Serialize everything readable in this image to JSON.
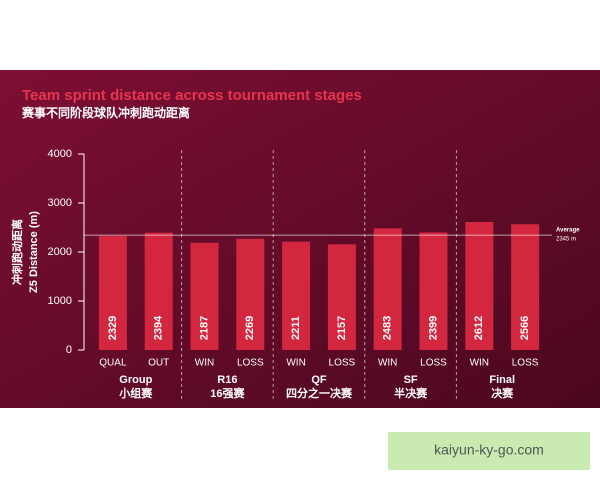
{
  "chart_data": {
    "type": "bar",
    "title": "Team sprint distance across tournament stages",
    "subtitle": "赛事不同阶段球队冲刺跑动距离",
    "y_label_zh": "冲刺跑动距离",
    "y_label": "Z5 Distance (m)",
    "categories": [
      "QUAL",
      "OUT",
      "WIN",
      "LOSS",
      "WIN",
      "LOSS",
      "WIN",
      "LOSS",
      "WIN",
      "LOSS"
    ],
    "values": [
      2329,
      2394,
      2187,
      2269,
      2211,
      2157,
      2483,
      2399,
      2612,
      2566
    ],
    "color": "#d3263f",
    "groups": [
      {
        "label": "Group",
        "label_zh": "小组赛"
      },
      {
        "label": "R16",
        "label_zh": "16强赛"
      },
      {
        "label": "QF",
        "label_zh": "四分之一决赛"
      },
      {
        "label": "SF",
        "label_zh": "半决赛"
      },
      {
        "label": "Final",
        "label_zh": "决赛"
      }
    ],
    "average": {
      "label": "Average",
      "value": 2345,
      "value_label": "2345 m"
    },
    "ylim": [
      0,
      4000
    ],
    "yticks": [
      0,
      1000,
      2000,
      3000,
      4000
    ]
  },
  "watermark": "kaiyun-ky-go.com"
}
